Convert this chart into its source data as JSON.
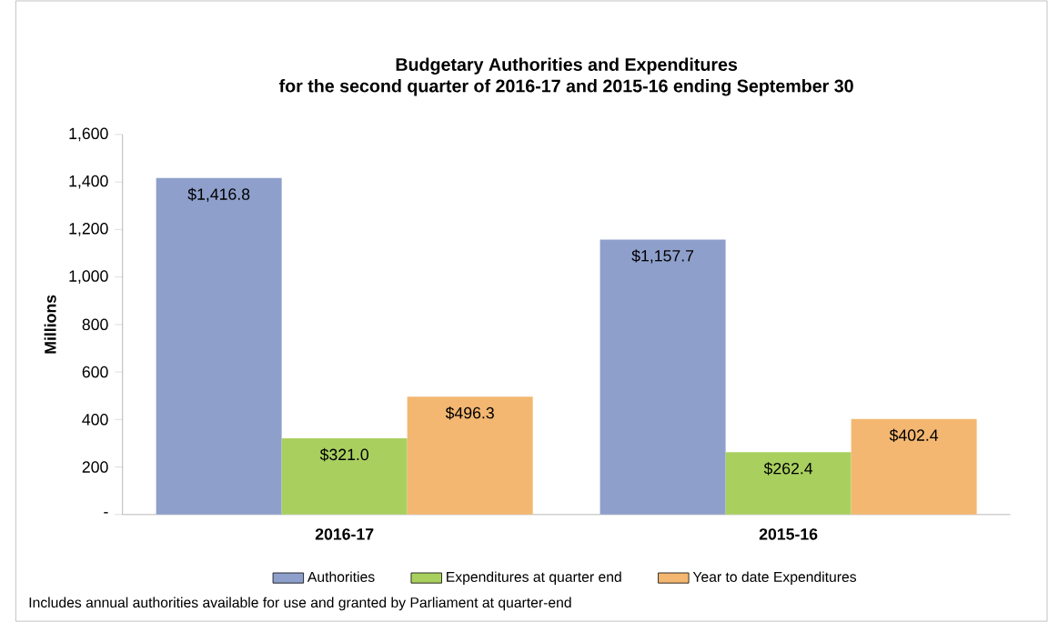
{
  "chart_data": {
    "type": "bar",
    "title": "Budgetary Authorities and Expenditures",
    "subtitle": "for the second quarter of 2016-17 and 2015-16 ending September 30",
    "ylabel": "Millions",
    "categories": [
      "2016-17",
      "2015-16"
    ],
    "series": [
      {
        "name": "Authorities",
        "color": "#8e9fcb",
        "values": [
          1416.8,
          1157.7
        ],
        "value_labels": [
          "$1,416.8",
          "$1,157.7"
        ]
      },
      {
        "name": "Expenditures at quarter end",
        "color": "#a9d05f",
        "values": [
          321.0,
          262.4
        ],
        "value_labels": [
          "$321.0",
          "$262.4"
        ]
      },
      {
        "name": "Year to date Expenditures",
        "color": "#f3b771",
        "values": [
          496.3,
          402.4
        ],
        "value_labels": [
          "$496.3",
          "$402.4"
        ]
      }
    ],
    "ylim": [
      0,
      1600
    ],
    "yticks": [
      {
        "value": 0,
        "label": "-"
      },
      200,
      400,
      600,
      800,
      {
        "value": 1000,
        "label": "1,000"
      },
      {
        "value": 1200,
        "label": "1,200"
      },
      {
        "value": 1400,
        "label": "1,400"
      },
      {
        "value": 1600,
        "label": "1,600"
      }
    ],
    "grid": false,
    "legend": "bottom",
    "annotations": [
      "Includes annual authorities available for use and granted by Parliament at quarter-end"
    ]
  }
}
